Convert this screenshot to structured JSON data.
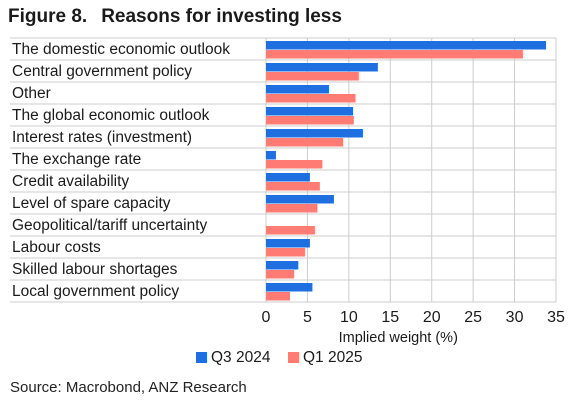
{
  "figure": {
    "number": "Figure 8.",
    "title": "Reasons for investing less",
    "source": "Source: Macrobond, ANZ Research"
  },
  "colors": {
    "q3_2024": "#1f6fe0",
    "q1_2025": "#ff7b74",
    "grid": "#cccccc",
    "axis": "#333333"
  },
  "chart_data": {
    "type": "bar",
    "orientation": "horizontal",
    "title": "Reasons for investing less",
    "xlabel": "Implied weight (%)",
    "ylabel": "",
    "xlim": [
      0,
      35
    ],
    "xticks": [
      0,
      5,
      10,
      15,
      20,
      25,
      30,
      35
    ],
    "grid": true,
    "legend_position": "bottom",
    "categories": [
      "The domestic economic outlook",
      "Central government policy",
      "Other",
      "The global economic outlook",
      "Interest rates (investment)",
      "The exchange rate",
      "Credit availability",
      "Level of spare capacity",
      "Geopolitical/tariff uncertainty",
      "Labour costs",
      "Skilled labour shortages",
      "Local government policy"
    ],
    "series": [
      {
        "name": "Q3 2024",
        "color": "#1f6fe0",
        "values": [
          33.8,
          13.5,
          7.6,
          10.5,
          11.7,
          1.2,
          5.3,
          8.2,
          null,
          5.3,
          3.9,
          5.6
        ]
      },
      {
        "name": "Q1 2025",
        "color": "#ff7b74",
        "values": [
          31.0,
          11.2,
          10.8,
          10.6,
          9.3,
          6.8,
          6.5,
          6.2,
          5.9,
          4.7,
          3.4,
          2.9
        ]
      }
    ]
  }
}
